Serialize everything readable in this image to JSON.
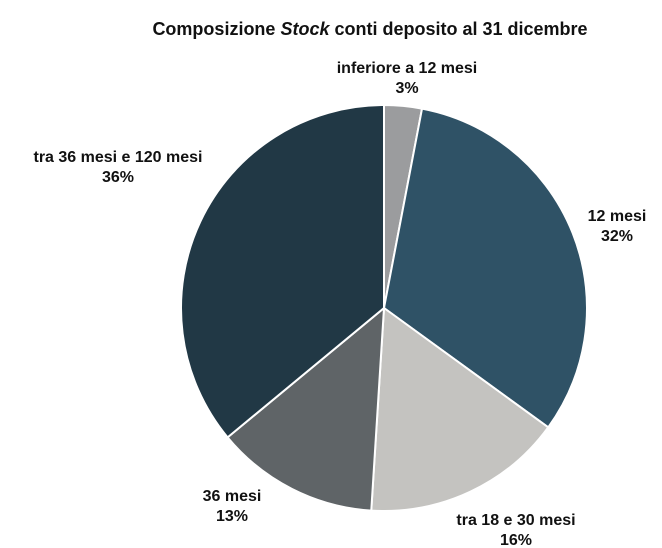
{
  "chart_data": {
    "type": "pie",
    "title": [
      "Composizione ",
      "Stock",
      " conti deposito al 31 dicembre"
    ],
    "categories": [
      "inferiore a 12 mesi",
      "12 mesi",
      "tra 18 e 30 mesi",
      "36 mesi",
      "tra 36 mesi e 120 mesi"
    ],
    "values": [
      3,
      32,
      16,
      13,
      36
    ],
    "value_labels": [
      "3%",
      "32%",
      "16%",
      "13%",
      "36%"
    ],
    "colors": [
      "#9b9c9e",
      "#2f5266",
      "#c4c3c0",
      "#5f6467",
      "#213845"
    ]
  }
}
